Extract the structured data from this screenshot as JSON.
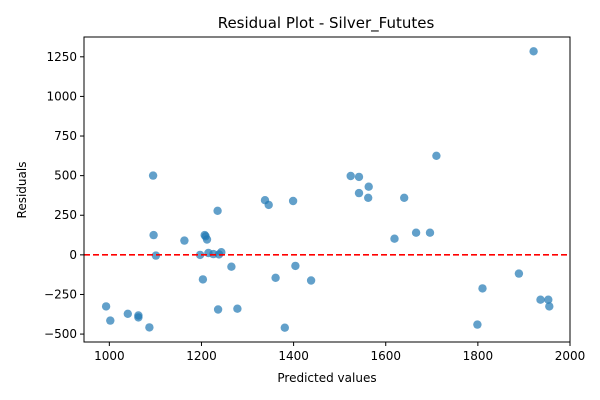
{
  "chart_data": {
    "type": "scatter",
    "title": "Residual Plot - Silver_Fututes",
    "xlabel": "Predicted values",
    "ylabel": "Residuals",
    "xlim": [
      945,
      2000
    ],
    "ylim": [
      -550,
      1375
    ],
    "xticks": [
      1000,
      1200,
      1400,
      1600,
      1800,
      2000
    ],
    "yticks": [
      -500,
      -250,
      0,
      250,
      500,
      750,
      1000,
      1250
    ],
    "grid": false,
    "point_color": "#1f77b4",
    "reference_line": {
      "y": 0,
      "style": "dashed",
      "color": "#ff0000"
    },
    "points": [
      {
        "x": 993,
        "y": -325
      },
      {
        "x": 1002,
        "y": -415
      },
      {
        "x": 1040,
        "y": -372
      },
      {
        "x": 1063,
        "y": -383
      },
      {
        "x": 1063,
        "y": -395
      },
      {
        "x": 1087,
        "y": -458
      },
      {
        "x": 1095,
        "y": 500
      },
      {
        "x": 1096,
        "y": 125
      },
      {
        "x": 1101,
        "y": -5
      },
      {
        "x": 1163,
        "y": 90
      },
      {
        "x": 1197,
        "y": 0
      },
      {
        "x": 1203,
        "y": -155
      },
      {
        "x": 1207,
        "y": 125
      },
      {
        "x": 1209,
        "y": 117
      },
      {
        "x": 1212,
        "y": 97
      },
      {
        "x": 1215,
        "y": 12
      },
      {
        "x": 1226,
        "y": 5
      },
      {
        "x": 1235,
        "y": 278
      },
      {
        "x": 1238,
        "y": 3
      },
      {
        "x": 1243,
        "y": 17
      },
      {
        "x": 1236,
        "y": -345
      },
      {
        "x": 1265,
        "y": -75
      },
      {
        "x": 1278,
        "y": -340
      },
      {
        "x": 1338,
        "y": 345
      },
      {
        "x": 1346,
        "y": 315
      },
      {
        "x": 1361,
        "y": -145
      },
      {
        "x": 1381,
        "y": -460
      },
      {
        "x": 1399,
        "y": 340
      },
      {
        "x": 1404,
        "y": -70
      },
      {
        "x": 1438,
        "y": -162
      },
      {
        "x": 1524,
        "y": 498
      },
      {
        "x": 1542,
        "y": 492
      },
      {
        "x": 1542,
        "y": 390
      },
      {
        "x": 1563,
        "y": 430
      },
      {
        "x": 1562,
        "y": 360
      },
      {
        "x": 1619,
        "y": 102
      },
      {
        "x": 1640,
        "y": 360
      },
      {
        "x": 1666,
        "y": 140
      },
      {
        "x": 1696,
        "y": 140
      },
      {
        "x": 1710,
        "y": 625
      },
      {
        "x": 1799,
        "y": -440
      },
      {
        "x": 1810,
        "y": -212
      },
      {
        "x": 1889,
        "y": -118
      },
      {
        "x": 1921,
        "y": 1285
      },
      {
        "x": 1936,
        "y": -283
      },
      {
        "x": 1953,
        "y": -283
      },
      {
        "x": 1955,
        "y": -325
      }
    ]
  }
}
